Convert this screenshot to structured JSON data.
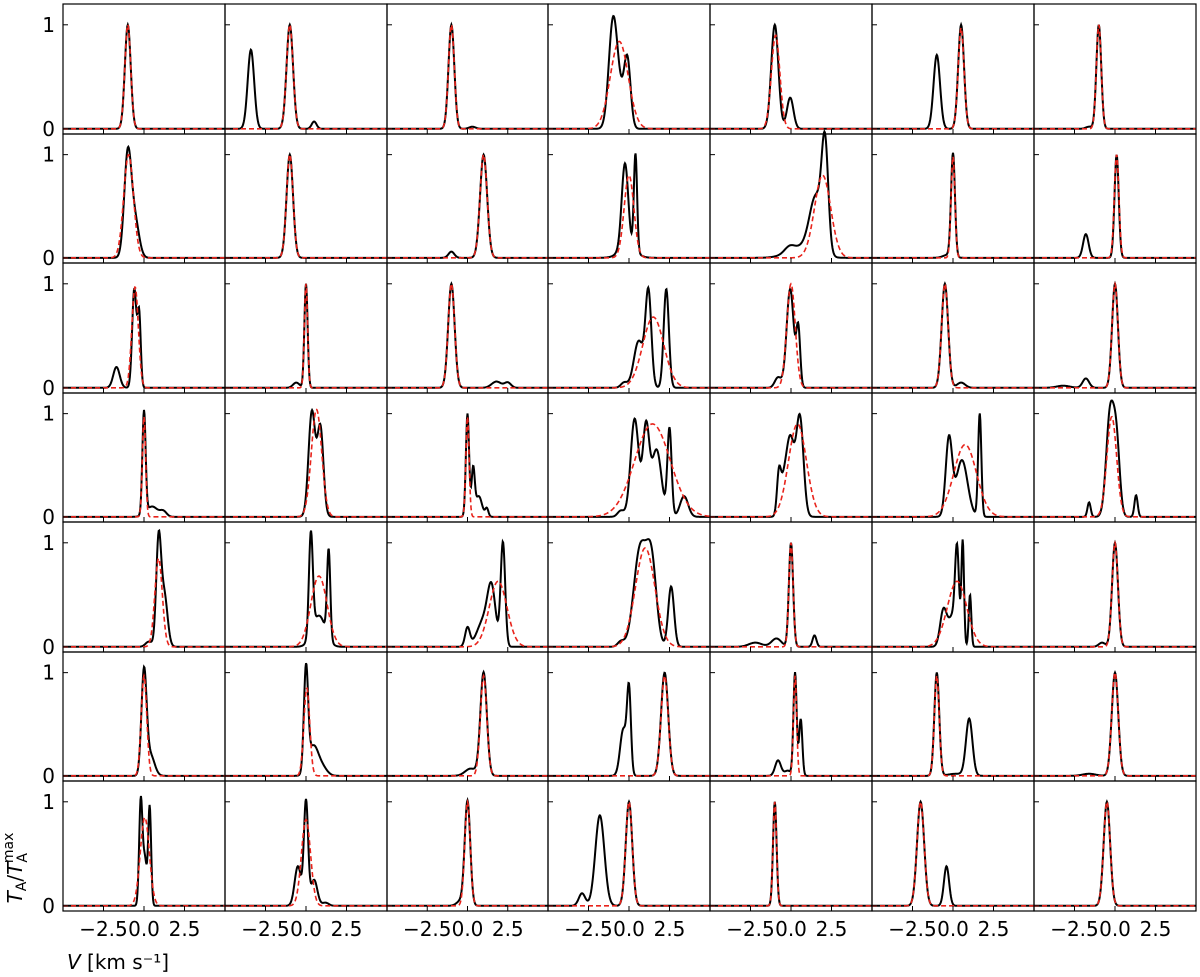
{
  "chart_data": {
    "type": "line",
    "layout": {
      "rows": 7,
      "cols": 7
    },
    "xlabel": "V [km s⁻¹]",
    "ylabel": "T_A/T_A^max",
    "x_ticks": [
      "−2.5",
      "0.0",
      "2.5"
    ],
    "y_ticks": [
      "0",
      "1"
    ],
    "xlim": [
      -5.0,
      5.0
    ],
    "ylim": [
      -0.05,
      1.2
    ],
    "colors": {
      "observed": "#000000",
      "fit": "#e8231b"
    },
    "panels": [
      {
        "row": 0,
        "col": 0,
        "obs": [
          [
            -1.0,
            1,
            0.18
          ]
        ],
        "fit": [
          [
            -1.0,
            1,
            0.18
          ]
        ]
      },
      {
        "row": 0,
        "col": 1,
        "obs": [
          [
            -3.4,
            0.76,
            0.2
          ],
          [
            -1.0,
            1,
            0.2
          ],
          [
            0.5,
            0.07,
            0.15
          ]
        ],
        "fit": [
          [
            -1.0,
            1,
            0.2
          ]
        ]
      },
      {
        "row": 0,
        "col": 2,
        "obs": [
          [
            -1.0,
            1,
            0.18
          ],
          [
            0.3,
            0.02,
            0.2
          ]
        ],
        "fit": [
          [
            -1.0,
            1,
            0.18
          ]
        ]
      },
      {
        "row": 0,
        "col": 3,
        "obs": [
          [
            -1.0,
            0.95,
            0.26
          ],
          [
            -0.1,
            0.63,
            0.2
          ],
          [
            -0.6,
            0.3,
            0.3
          ]
        ],
        "fit": [
          [
            -0.6,
            0.84,
            0.55
          ]
        ]
      },
      {
        "row": 0,
        "col": 4,
        "obs": [
          [
            -1.0,
            1,
            0.22
          ],
          [
            -0.05,
            0.3,
            0.2
          ]
        ],
        "fit": [
          [
            -0.95,
            0.9,
            0.26
          ]
        ]
      },
      {
        "row": 0,
        "col": 5,
        "obs": [
          [
            -1.0,
            0.71,
            0.2
          ],
          [
            0.5,
            1,
            0.18
          ]
        ],
        "fit": [
          [
            0.5,
            0.97,
            0.18
          ]
        ]
      },
      {
        "row": 0,
        "col": 6,
        "obs": [
          [
            -1.0,
            1,
            0.15
          ],
          [
            -1.6,
            0.02,
            0.2
          ]
        ],
        "fit": [
          [
            -1.0,
            1,
            0.15
          ]
        ]
      },
      {
        "row": 1,
        "col": 0,
        "obs": [
          [
            -1.0,
            1,
            0.22
          ],
          [
            -0.55,
            0.35,
            0.25
          ]
        ],
        "fit": [
          [
            -0.95,
            1,
            0.3
          ]
        ]
      },
      {
        "row": 1,
        "col": 1,
        "obs": [
          [
            -1.0,
            1,
            0.2
          ]
        ],
        "fit": [
          [
            -1.0,
            1,
            0.2
          ]
        ]
      },
      {
        "row": 1,
        "col": 2,
        "obs": [
          [
            1.0,
            1,
            0.22
          ],
          [
            -1.0,
            0.06,
            0.18
          ]
        ],
        "fit": [
          [
            1.0,
            1,
            0.22
          ]
        ]
      },
      {
        "row": 1,
        "col": 3,
        "obs": [
          [
            -0.25,
            0.82,
            0.2
          ],
          [
            0.4,
            0.95,
            0.1
          ],
          [
            -0.1,
            0.1,
            0.5
          ]
        ],
        "fit": [
          [
            0.0,
            0.8,
            0.3
          ]
        ]
      },
      {
        "row": 1,
        "col": 4,
        "obs": [
          [
            2.1,
            0.98,
            0.2
          ],
          [
            1.55,
            0.55,
            0.4
          ],
          [
            -0.1,
            0.05,
            0.3
          ],
          [
            0.6,
            0.1,
            0.8
          ]
        ],
        "fit": [
          [
            1.95,
            0.8,
            0.5
          ]
        ]
      },
      {
        "row": 1,
        "col": 5,
        "obs": [
          [
            0.0,
            1,
            0.12
          ],
          [
            -0.3,
            0.03,
            0.3
          ]
        ],
        "fit": [
          [
            0.0,
            0.98,
            0.12
          ]
        ]
      },
      {
        "row": 1,
        "col": 6,
        "obs": [
          [
            -1.8,
            0.23,
            0.17
          ],
          [
            0.1,
            1,
            0.13
          ]
        ],
        "fit": [
          [
            0.1,
            1,
            0.14
          ]
        ]
      },
      {
        "row": 2,
        "col": 0,
        "obs": [
          [
            -0.6,
            0.95,
            0.13
          ],
          [
            -0.3,
            0.7,
            0.1
          ],
          [
            -1.7,
            0.2,
            0.2
          ]
        ],
        "fit": [
          [
            -0.55,
            0.97,
            0.2
          ]
        ]
      },
      {
        "row": 2,
        "col": 1,
        "obs": [
          [
            0.0,
            1,
            0.1
          ],
          [
            -0.6,
            0.05,
            0.2
          ]
        ],
        "fit": [
          [
            0.0,
            1,
            0.1
          ]
        ]
      },
      {
        "row": 2,
        "col": 2,
        "obs": [
          [
            -1.0,
            1,
            0.2
          ],
          [
            1.8,
            0.06,
            0.3
          ],
          [
            2.5,
            0.05,
            0.2
          ]
        ],
        "fit": [
          [
            -1.0,
            1,
            0.2
          ]
        ]
      },
      {
        "row": 2,
        "col": 3,
        "obs": [
          [
            1.2,
            0.9,
            0.18
          ],
          [
            2.3,
            0.95,
            0.16
          ],
          [
            0.6,
            0.45,
            0.3
          ],
          [
            -0.3,
            0.05,
            0.2
          ]
        ],
        "fit": [
          [
            1.5,
            0.68,
            0.65
          ]
        ]
      },
      {
        "row": 2,
        "col": 4,
        "obs": [
          [
            -0.05,
            0.95,
            0.22
          ],
          [
            0.45,
            0.55,
            0.12
          ],
          [
            -0.8,
            0.1,
            0.2
          ]
        ],
        "fit": [
          [
            0.0,
            1,
            0.26
          ]
        ]
      },
      {
        "row": 2,
        "col": 5,
        "obs": [
          [
            -0.5,
            1,
            0.2
          ],
          [
            0.5,
            0.05,
            0.25
          ]
        ],
        "fit": [
          [
            -0.5,
            1,
            0.2
          ]
        ]
      },
      {
        "row": 2,
        "col": 6,
        "obs": [
          [
            0.0,
            1,
            0.18
          ],
          [
            -1.8,
            0.09,
            0.2
          ],
          [
            -3.2,
            0.02,
            0.4
          ]
        ],
        "fit": [
          [
            0.0,
            1,
            0.18
          ]
        ]
      },
      {
        "row": 3,
        "col": 0,
        "obs": [
          [
            0.0,
            1,
            0.1
          ],
          [
            0.5,
            0.1,
            0.35
          ],
          [
            1.2,
            0.05,
            0.2
          ]
        ],
        "fit": [
          [
            0.0,
            0.97,
            0.1
          ]
        ]
      },
      {
        "row": 3,
        "col": 1,
        "obs": [
          [
            0.35,
            0.88,
            0.2
          ],
          [
            0.9,
            0.75,
            0.18
          ],
          [
            0.6,
            0.2,
            0.3
          ]
        ],
        "fit": [
          [
            0.65,
            1.04,
            0.32
          ]
        ]
      },
      {
        "row": 3,
        "col": 2,
        "obs": [
          [
            0.0,
            1,
            0.1
          ],
          [
            0.35,
            0.45,
            0.1
          ],
          [
            0.7,
            0.2,
            0.2
          ],
          [
            1.2,
            0.08,
            0.1
          ]
        ],
        "fit": [
          [
            0.0,
            0.97,
            0.1
          ]
        ]
      },
      {
        "row": 3,
        "col": 3,
        "obs": [
          [
            0.35,
            0.95,
            0.25
          ],
          [
            1.05,
            0.85,
            0.2
          ],
          [
            2.5,
            0.85,
            0.13
          ],
          [
            3.4,
            0.2,
            0.25
          ],
          [
            1.7,
            0.65,
            0.3
          ],
          [
            -0.5,
            0.06,
            0.2
          ]
        ],
        "fit": [
          [
            1.45,
            0.9,
            1.1
          ]
        ]
      },
      {
        "row": 3,
        "col": 4,
        "obs": [
          [
            0.55,
            0.95,
            0.22
          ],
          [
            -0.05,
            0.75,
            0.25
          ],
          [
            -0.75,
            0.35,
            0.12
          ],
          [
            -0.5,
            0.25,
            0.2
          ]
        ],
        "fit": [
          [
            0.4,
            0.9,
            0.55
          ]
        ]
      },
      {
        "row": 3,
        "col": 5,
        "obs": [
          [
            -0.25,
            0.75,
            0.2
          ],
          [
            1.65,
            1,
            0.1
          ],
          [
            0.55,
            0.55,
            0.35
          ]
        ],
        "fit": [
          [
            0.75,
            0.7,
            0.7
          ]
        ]
      },
      {
        "row": 3,
        "col": 6,
        "obs": [
          [
            -0.3,
            1,
            0.24
          ],
          [
            0.1,
            0.65,
            0.2
          ],
          [
            -1.6,
            0.14,
            0.1
          ],
          [
            1.3,
            0.21,
            0.1
          ]
        ],
        "fit": [
          [
            -0.2,
            0.97,
            0.3
          ]
        ]
      },
      {
        "row": 4,
        "col": 0,
        "obs": [
          [
            0.9,
            1,
            0.15
          ],
          [
            1.25,
            0.5,
            0.2
          ],
          [
            0.3,
            0.05,
            0.2
          ]
        ],
        "fit": [
          [
            0.9,
            0.85,
            0.23
          ]
        ]
      },
      {
        "row": 4,
        "col": 1,
        "obs": [
          [
            0.3,
            0.98,
            0.12
          ],
          [
            1.4,
            0.85,
            0.1
          ],
          [
            0.8,
            0.3,
            0.4
          ]
        ],
        "fit": [
          [
            0.8,
            0.68,
            0.5
          ]
        ]
      },
      {
        "row": 4,
        "col": 2,
        "obs": [
          [
            2.2,
            1,
            0.14
          ],
          [
            1.5,
            0.5,
            0.25
          ],
          [
            0.0,
            0.18,
            0.15
          ],
          [
            1.0,
            0.25,
            0.4
          ]
        ],
        "fit": [
          [
            1.9,
            0.63,
            0.55
          ]
        ]
      },
      {
        "row": 4,
        "col": 3,
        "obs": [
          [
            0.7,
            0.95,
            0.4
          ],
          [
            1.4,
            0.75,
            0.3
          ],
          [
            2.6,
            0.58,
            0.18
          ],
          [
            -0.5,
            0.05,
            0.2
          ]
        ],
        "fit": [
          [
            1.0,
            0.95,
            0.6
          ]
        ]
      },
      {
        "row": 4,
        "col": 4,
        "obs": [
          [
            0.0,
            1,
            0.13
          ],
          [
            -0.9,
            0.08,
            0.3
          ],
          [
            1.45,
            0.11,
            0.12
          ],
          [
            -2.2,
            0.04,
            0.4
          ]
        ],
        "fit": [
          [
            0.0,
            1,
            0.13
          ]
        ]
      },
      {
        "row": 4,
        "col": 5,
        "obs": [
          [
            0.25,
            0.78,
            0.12
          ],
          [
            0.6,
            0.98,
            0.08
          ],
          [
            -0.6,
            0.33,
            0.2
          ],
          [
            1.05,
            0.5,
            0.08
          ],
          [
            0.0,
            0.3,
            0.3
          ]
        ],
        "fit": [
          [
            0.25,
            0.63,
            0.6
          ]
        ]
      },
      {
        "row": 4,
        "col": 6,
        "obs": [
          [
            0.0,
            1,
            0.18
          ],
          [
            -0.8,
            0.04,
            0.2
          ]
        ],
        "fit": [
          [
            0.0,
            1,
            0.18
          ]
        ]
      },
      {
        "row": 5,
        "col": 0,
        "obs": [
          [
            0.0,
            1,
            0.16
          ],
          [
            0.4,
            0.2,
            0.25
          ]
        ],
        "fit": [
          [
            0.0,
            0.97,
            0.17
          ]
        ]
      },
      {
        "row": 5,
        "col": 1,
        "obs": [
          [
            0.0,
            1,
            0.13
          ],
          [
            0.45,
            0.28,
            0.3
          ],
          [
            1.0,
            0.08,
            0.3
          ]
        ],
        "fit": [
          [
            0.05,
            0.85,
            0.18
          ]
        ]
      },
      {
        "row": 5,
        "col": 2,
        "obs": [
          [
            1.0,
            1,
            0.2
          ],
          [
            0.2,
            0.07,
            0.35
          ]
        ],
        "fit": [
          [
            1.0,
            0.97,
            0.2
          ]
        ]
      },
      {
        "row": 5,
        "col": 3,
        "obs": [
          [
            0.0,
            0.8,
            0.12
          ],
          [
            -0.35,
            0.45,
            0.2
          ],
          [
            2.2,
            1,
            0.22
          ]
        ],
        "fit": [
          [
            2.2,
            0.97,
            0.22
          ]
        ]
      },
      {
        "row": 5,
        "col": 4,
        "obs": [
          [
            0.25,
            1,
            0.1
          ],
          [
            0.6,
            0.55,
            0.1
          ],
          [
            -0.8,
            0.15,
            0.18
          ],
          [
            -0.2,
            0.05,
            0.2
          ]
        ],
        "fit": [
          [
            0.25,
            0.97,
            0.1
          ]
        ]
      },
      {
        "row": 5,
        "col": 5,
        "obs": [
          [
            -1.0,
            1,
            0.15
          ],
          [
            1.0,
            0.55,
            0.2
          ],
          [
            0.2,
            0.02,
            0.5
          ]
        ],
        "fit": [
          [
            -1.0,
            0.97,
            0.15
          ]
        ]
      },
      {
        "row": 5,
        "col": 6,
        "obs": [
          [
            0.0,
            1,
            0.2
          ],
          [
            -1.6,
            0.02,
            0.4
          ]
        ],
        "fit": [
          [
            0.0,
            1,
            0.2
          ]
        ]
      },
      {
        "row": 6,
        "col": 0,
        "obs": [
          [
            -0.2,
            1,
            0.1
          ],
          [
            0.35,
            0.95,
            0.09
          ],
          [
            0.05,
            0.45,
            0.12
          ]
        ],
        "fit": [
          [
            0.05,
            0.85,
            0.28
          ]
        ]
      },
      {
        "row": 6,
        "col": 1,
        "obs": [
          [
            0.0,
            1,
            0.13
          ],
          [
            -0.5,
            0.38,
            0.2
          ],
          [
            0.5,
            0.25,
            0.2
          ],
          [
            1.2,
            0.03,
            0.2
          ]
        ],
        "fit": [
          [
            0.0,
            0.83,
            0.28
          ]
        ]
      },
      {
        "row": 6,
        "col": 2,
        "obs": [
          [
            0.0,
            1,
            0.17
          ],
          [
            -0.4,
            0.05,
            0.25
          ]
        ],
        "fit": [
          [
            0.0,
            1,
            0.17
          ]
        ]
      },
      {
        "row": 6,
        "col": 3,
        "obs": [
          [
            -1.8,
            0.87,
            0.28
          ],
          [
            0.0,
            1,
            0.2
          ],
          [
            -2.9,
            0.12,
            0.2
          ]
        ],
        "fit": [
          [
            0.0,
            1,
            0.2
          ]
        ]
      },
      {
        "row": 6,
        "col": 4,
        "obs": [
          [
            -1.0,
            1,
            0.11
          ]
        ],
        "fit": [
          [
            -1.0,
            1,
            0.11
          ]
        ]
      },
      {
        "row": 6,
        "col": 5,
        "obs": [
          [
            -2.0,
            1,
            0.22
          ],
          [
            -0.4,
            0.38,
            0.16
          ]
        ],
        "fit": [
          [
            -2.0,
            1,
            0.22
          ]
        ]
      },
      {
        "row": 6,
        "col": 6,
        "obs": [
          [
            -0.5,
            1,
            0.2
          ]
        ],
        "fit": [
          [
            -0.5,
            1,
            0.2
          ]
        ]
      }
    ]
  }
}
